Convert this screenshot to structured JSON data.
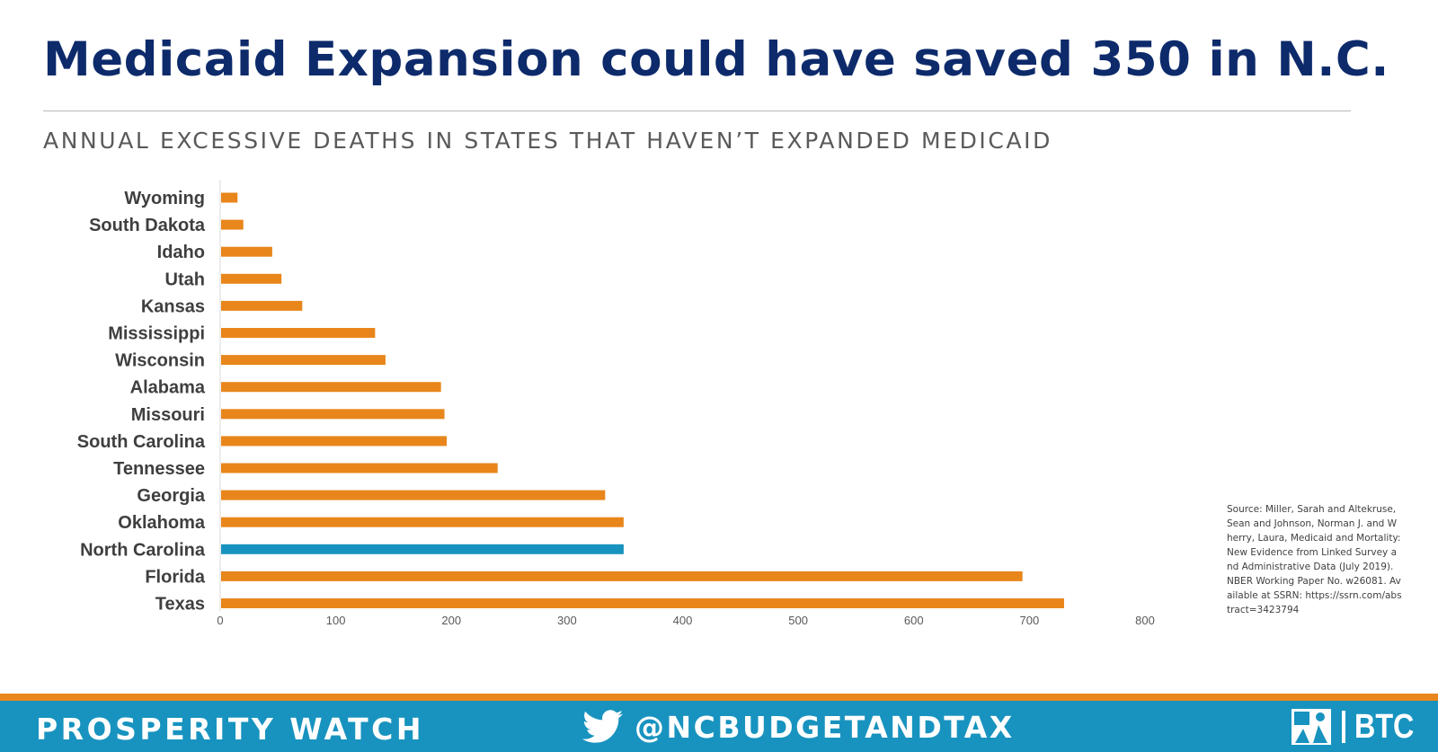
{
  "title": "Medicaid Expansion could have saved 350 in N.C.",
  "subtitle": "ANNUAL EXCESSIVE DEATHS IN STATES THAT HAVEN’T EXPANDED MEDICAID",
  "source": "Source: Miller, Sarah and Altekruse, Sean and Johnson, Norman J. and Wherry, Laura, Medicaid and Mortality: New Evidence from Linked Survey and Administrative Data (July 2019). NBER Working Paper No. w26081. Available at SSRN: https://ssrn.com/abstract=3423794",
  "footer": {
    "left_label": "PROSPERITY WATCH",
    "handle": "@NCBUDGETANDTAX",
    "twitter_icon": "twitter-bird-icon",
    "logo_text": "BTC",
    "logo_icon": "btc-logo-icon"
  },
  "colors": {
    "title": "#0d2a6b",
    "bar_default": "#e8861c",
    "bar_highlight": "#1893bf",
    "footer_bg": "#1893bf",
    "footer_stripe": "#e8861c"
  },
  "chart_data": {
    "type": "bar",
    "orientation": "horizontal",
    "title": "ANNUAL EXCESSIVE DEATHS IN STATES THAT HAVEN’T EXPANDED MEDICAID",
    "xlabel": "",
    "ylabel": "",
    "xlim": [
      0,
      800
    ],
    "xticks": [
      0,
      100,
      200,
      300,
      400,
      500,
      600,
      700,
      800
    ],
    "grid": false,
    "legend": "none",
    "categories": [
      "Wyoming",
      "South Dakota",
      "Idaho",
      "Utah",
      "Kansas",
      "Mississippi",
      "Wisconsin",
      "Alabama",
      "Missouri",
      "South Carolina",
      "Tennessee",
      "Georgia",
      "Oklahoma",
      "North Carolina",
      "Florida",
      "Texas"
    ],
    "values": [
      15,
      20,
      45,
      53,
      71,
      134,
      143,
      191,
      194,
      196,
      240,
      333,
      349,
      349,
      694,
      730
    ],
    "highlight": "North Carolina"
  }
}
